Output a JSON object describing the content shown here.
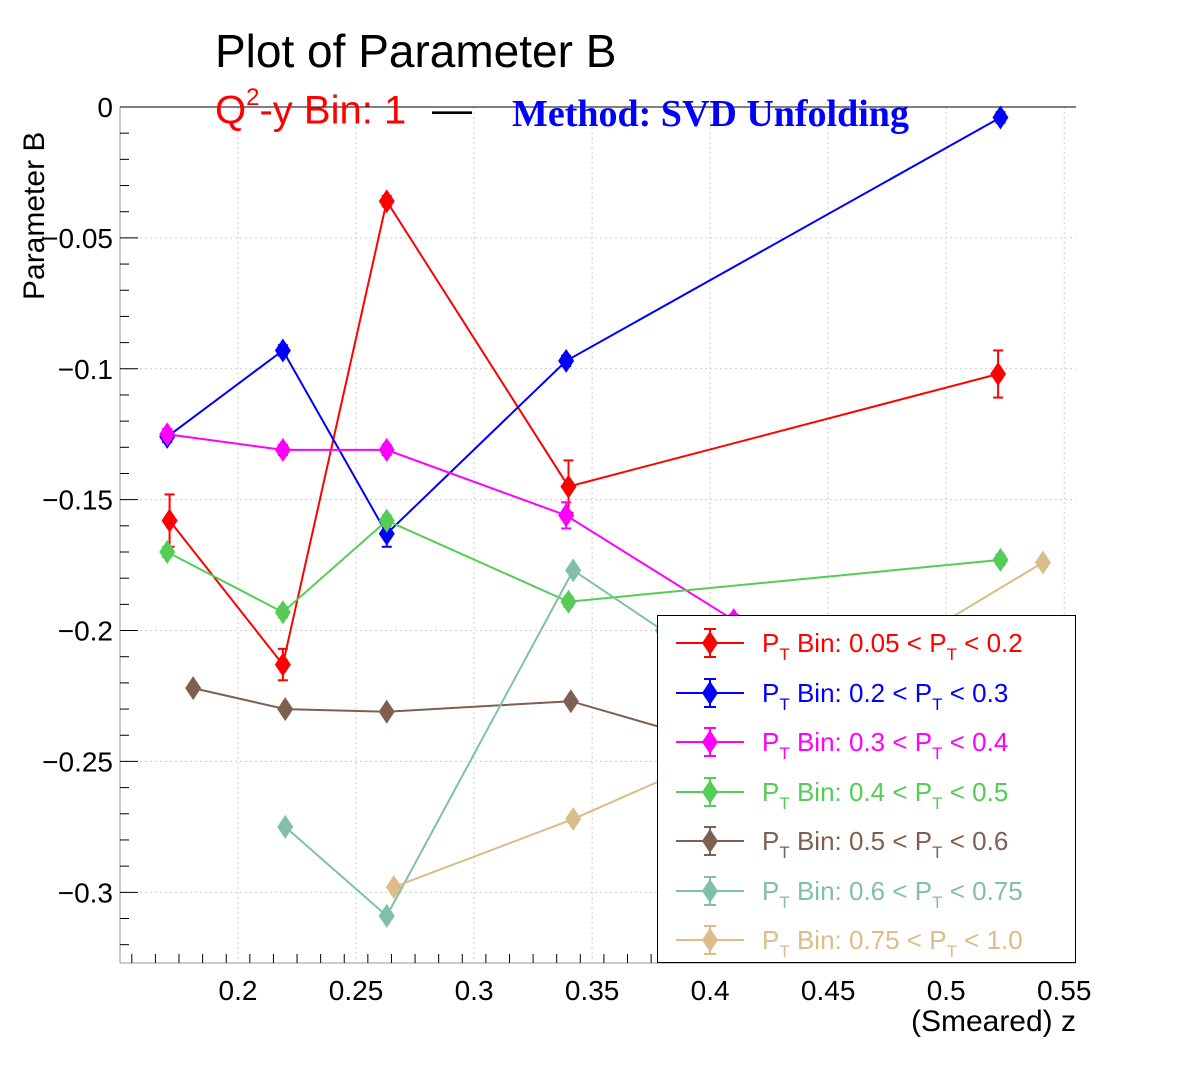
{
  "title": "Plot of Parameter B",
  "subtitle_red_prefix": "Q",
  "subtitle_red_sup": "2",
  "subtitle_red_suffix": "-y Bin: 1",
  "subtitle_separator": "—",
  "subtitle_blue": "Method: SVD Unfolding",
  "colors": {
    "red": "#ff0000",
    "blue": "#0000ff",
    "magenta": "#ff00ff",
    "green": "#55cc55",
    "brown": "#7f6050",
    "teal": "#80c0a8",
    "tan": "#dcbc88"
  },
  "chart_data": {
    "type": "line",
    "title": "Plot of Parameter B",
    "xlabel": "(Smeared) z",
    "ylabel": "Parameter B",
    "xlim": [
      0.15,
      0.555
    ],
    "ylim": [
      -0.327,
      0.0
    ],
    "x_ticks": [
      "0.2",
      "0.25",
      "0.3",
      "0.35",
      "0.4",
      "0.45",
      "0.5",
      "0.55"
    ],
    "x_tick_values": [
      0.2,
      0.25,
      0.3,
      0.35,
      0.4,
      0.45,
      0.5,
      0.55
    ],
    "y_ticks": [
      "0",
      "−0.05",
      "−0.1",
      "−0.15",
      "−0.2",
      "−0.25",
      "−0.3"
    ],
    "y_tick_values": [
      0,
      -0.05,
      -0.1,
      -0.15,
      -0.2,
      -0.25,
      -0.3
    ],
    "grid": true,
    "legend_position": "bottom-right",
    "series": [
      {
        "pre": "P",
        "sub": "T",
        "mid": " Bin: 0.05 < P",
        "sub2": "T",
        "post": " < 0.2",
        "color": "#ff0000",
        "x": [
          0.171,
          0.219,
          0.263,
          0.34,
          0.522
        ],
        "y": [
          -0.158,
          -0.213,
          -0.036,
          -0.145,
          -0.102
        ],
        "err": [
          0.01,
          0.006,
          0.002,
          0.01,
          0.009
        ]
      },
      {
        "pre": "P",
        "sub": "T",
        "mid": " Bin: 0.2 < P",
        "sub2": "T",
        "post": " < 0.3",
        "color": "#0000ff",
        "x": [
          0.17,
          0.219,
          0.263,
          0.339,
          0.523
        ],
        "y": [
          -0.126,
          -0.093,
          -0.163,
          -0.097,
          -0.004
        ],
        "err": [
          0.002,
          0.002,
          0.005,
          0.002,
          0.002
        ]
      },
      {
        "pre": "P",
        "sub": "T",
        "mid": " Bin: 0.3 < P",
        "sub2": "T",
        "post": " < 0.4",
        "color": "#ff00ff",
        "x": [
          0.17,
          0.219,
          0.263,
          0.339,
          0.41
        ],
        "y": [
          -0.125,
          -0.131,
          -0.131,
          -0.156,
          -0.196
        ],
        "err": [
          0.002,
          0.002,
          0.002,
          0.005,
          0.002
        ]
      },
      {
        "pre": "P",
        "sub": "T",
        "mid": " Bin: 0.4 < P",
        "sub2": "T",
        "post": " < 0.5",
        "color": "#55cc55",
        "x": [
          0.17,
          0.219,
          0.263,
          0.34,
          0.523
        ],
        "y": [
          -0.17,
          -0.193,
          -0.158,
          -0.189,
          -0.173
        ],
        "err": [
          0.002,
          0.002,
          0.002,
          0.002,
          0.002
        ]
      },
      {
        "pre": "P",
        "sub": "T",
        "mid": " Bin: 0.5 < P",
        "sub2": "T",
        "post": " < 0.6",
        "color": "#7f6050",
        "x": [
          0.181,
          0.22,
          0.263,
          0.341,
          0.41
        ],
        "y": [
          -0.222,
          -0.23,
          -0.231,
          -0.227,
          -0.245
        ],
        "err": [
          0.001,
          0.001,
          0.001,
          0.001,
          0.001
        ]
      },
      {
        "pre": "P",
        "sub": "T",
        "mid": " Bin: 0.6 < P",
        "sub2": "T",
        "post": " < 0.75",
        "color": "#80c0a8",
        "x": [
          0.22,
          0.263,
          0.342,
          0.38
        ],
        "y": [
          -0.275,
          -0.309,
          -0.177,
          -0.2
        ],
        "err": [
          0.001,
          0.001,
          0.001,
          0.001
        ]
      },
      {
        "pre": "P",
        "sub": "T",
        "mid": " Bin: 0.75 < P",
        "sub2": "T",
        "post": " < 1.0",
        "color": "#dcbc88",
        "x": [
          0.266,
          0.342,
          0.41,
          0.541
        ],
        "y": [
          -0.298,
          -0.272,
          -0.245,
          -0.174
        ],
        "err": [
          0.001,
          0.001,
          0.001,
          0.001
        ]
      }
    ]
  }
}
